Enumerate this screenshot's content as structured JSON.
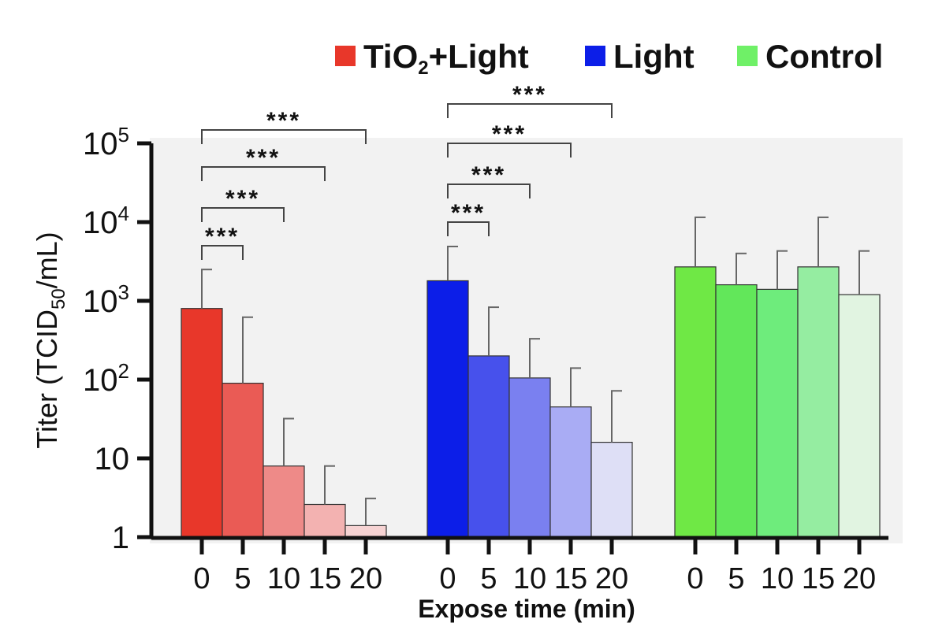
{
  "chart_data": {
    "type": "bar",
    "y_scale": "log",
    "ylim": [
      1,
      100000
    ],
    "ylabel": "Titer (TCID50/mL)",
    "xlabel": "Expose time (min)",
    "yticks": [
      {
        "value": 1,
        "base": "1",
        "exp": ""
      },
      {
        "value": 10,
        "base": "10",
        "exp": ""
      },
      {
        "value": 100,
        "base": "10",
        "exp": "2"
      },
      {
        "value": 1000,
        "base": "10",
        "exp": "3"
      },
      {
        "value": 10000,
        "base": "10",
        "exp": "4"
      },
      {
        "value": 100000,
        "base": "10",
        "exp": "5"
      }
    ],
    "categories": [
      "0",
      "5",
      "10",
      "15",
      "20"
    ],
    "legend_position": "top-right",
    "groups": [
      {
        "name": "TiO2+Light",
        "legend_main": "TiO",
        "legend_sub": "2",
        "legend_rest": "+Light",
        "color": "#e8372a",
        "fills": [
          "#e8372a",
          "#ea5b55",
          "#ee8a88",
          "#f3b2b1",
          "#f6d3d3"
        ],
        "values": [
          800,
          90,
          8,
          2.6,
          1.4
        ],
        "error_upper": [
          2500,
          620,
          32,
          8,
          3.1
        ]
      },
      {
        "name": "Light",
        "legend_main": "Light",
        "legend_sub": "",
        "legend_rest": "",
        "color": "#0c1ee8",
        "fills": [
          "#0c1ee8",
          "#4751ec",
          "#7a80f0",
          "#a9acf4",
          "#dedff6"
        ],
        "values": [
          1800,
          200,
          105,
          45,
          16
        ],
        "error_upper": [
          4900,
          830,
          330,
          140,
          72
        ]
      },
      {
        "name": "Control",
        "legend_main": "Control",
        "legend_sub": "",
        "legend_rest": "",
        "color": "#6ff067",
        "fills": [
          "#6fe845",
          "#62e75a",
          "#6eec7c",
          "#95eda1",
          "#e1f4e1"
        ],
        "values": [
          2700,
          1600,
          1400,
          2700,
          1200
        ],
        "error_upper": [
          11500,
          4000,
          4300,
          11500,
          4300
        ]
      }
    ],
    "significance": [
      {
        "group": 0,
        "from": 0,
        "to": 1,
        "label": "***"
      },
      {
        "group": 0,
        "from": 0,
        "to": 2,
        "label": "***"
      },
      {
        "group": 0,
        "from": 0,
        "to": 3,
        "label": "***"
      },
      {
        "group": 0,
        "from": 0,
        "to": 4,
        "label": "***"
      },
      {
        "group": 1,
        "from": 0,
        "to": 1,
        "label": "***"
      },
      {
        "group": 1,
        "from": 0,
        "to": 2,
        "label": "***"
      },
      {
        "group": 1,
        "from": 0,
        "to": 3,
        "label": "***"
      },
      {
        "group": 1,
        "from": 0,
        "to": 4,
        "label": "***"
      }
    ]
  }
}
